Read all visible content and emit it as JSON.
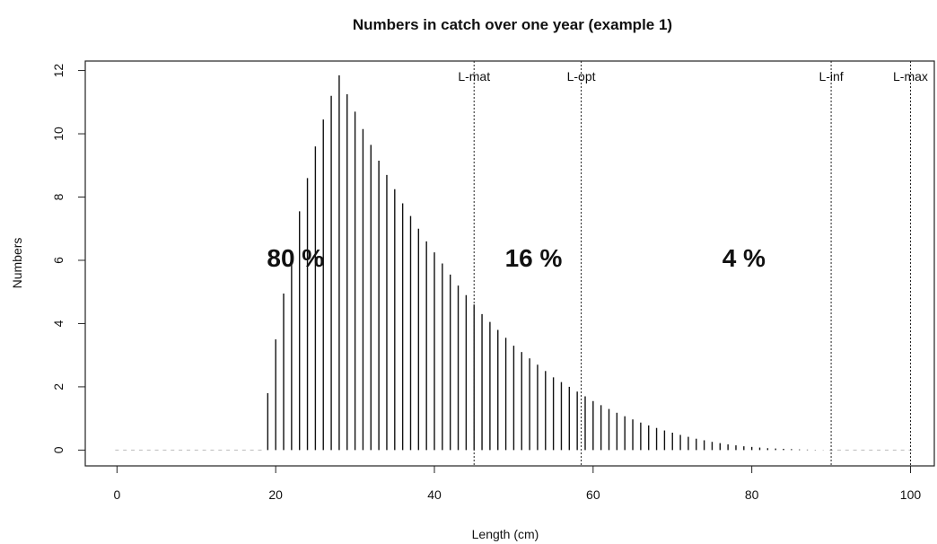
{
  "chart_data": {
    "type": "bar",
    "title": "Numbers in catch over one year (example 1)",
    "xlabel": "Length (cm)",
    "ylabel": "Numbers",
    "xlim": [
      -4,
      103
    ],
    "ylim": [
      -0.5,
      12.3
    ],
    "xticks": [
      0,
      20,
      40,
      60,
      80,
      100
    ],
    "yticks": [
      0,
      2,
      4,
      6,
      8,
      10,
      12
    ],
    "grid": false,
    "x": [
      0,
      1,
      2,
      3,
      4,
      5,
      6,
      7,
      8,
      9,
      10,
      11,
      12,
      13,
      14,
      15,
      16,
      17,
      18,
      19,
      20,
      21,
      22,
      23,
      24,
      25,
      26,
      27,
      28,
      29,
      30,
      31,
      32,
      33,
      34,
      35,
      36,
      37,
      38,
      39,
      40,
      41,
      42,
      43,
      44,
      45,
      46,
      47,
      48,
      49,
      50,
      51,
      52,
      53,
      54,
      55,
      56,
      57,
      58,
      59,
      60,
      61,
      62,
      63,
      64,
      65,
      66,
      67,
      68,
      69,
      70,
      71,
      72,
      73,
      74,
      75,
      76,
      77,
      78,
      79,
      80,
      81,
      82,
      83,
      84,
      85,
      86,
      87,
      88,
      89,
      90,
      91,
      92,
      93,
      94,
      95,
      96,
      97,
      98,
      99,
      100
    ],
    "values": [
      0,
      0,
      0,
      0,
      0,
      0,
      0,
      0,
      0,
      0,
      0,
      0,
      0,
      0,
      0,
      0,
      0,
      0,
      0,
      1.8,
      3.5,
      4.95,
      6.25,
      7.55,
      8.6,
      9.6,
      10.45,
      11.2,
      11.85,
      11.25,
      10.7,
      10.15,
      9.65,
      9.15,
      8.7,
      8.25,
      7.8,
      7.4,
      7.0,
      6.6,
      6.25,
      5.9,
      5.55,
      5.2,
      4.9,
      4.6,
      4.3,
      4.05,
      3.8,
      3.55,
      3.3,
      3.1,
      2.9,
      2.7,
      2.5,
      2.3,
      2.15,
      2.0,
      1.85,
      1.7,
      1.55,
      1.42,
      1.3,
      1.18,
      1.07,
      0.97,
      0.87,
      0.78,
      0.7,
      0.62,
      0.55,
      0.48,
      0.42,
      0.36,
      0.31,
      0.26,
      0.22,
      0.18,
      0.15,
      0.12,
      0.1,
      0.08,
      0.06,
      0.05,
      0.04,
      0.03,
      0.02,
      0.015,
      0.01,
      0.005,
      0,
      0,
      0,
      0,
      0,
      0,
      0,
      0,
      0,
      0,
      0
    ],
    "reference_lines": [
      {
        "label": "L-mat",
        "x": 45
      },
      {
        "label": "L-opt",
        "x": 58.5
      },
      {
        "label": "L-inf",
        "x": 90
      },
      {
        "label": "L-max",
        "x": 100
      }
    ],
    "annotations": [
      {
        "text": "80 %",
        "x": 22.5,
        "y": 5.8
      },
      {
        "text": "16 %",
        "x": 52.5,
        "y": 5.8
      },
      {
        "text": "4 %",
        "x": 79,
        "y": 5.8
      }
    ]
  }
}
